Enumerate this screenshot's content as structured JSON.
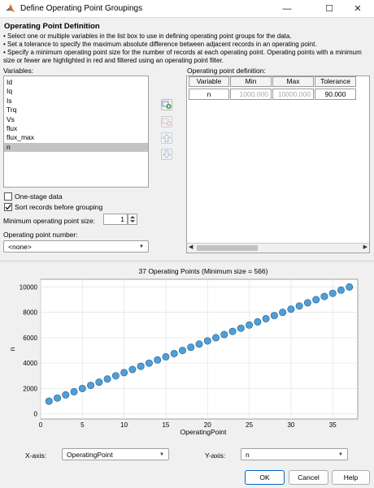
{
  "window": {
    "title": "Define Operating Point Groupings",
    "minimize_glyph": "—",
    "maximize_glyph": "☐",
    "close_glyph": "✕"
  },
  "section": {
    "title": "Operating Point Definition",
    "instructions": [
      "• Select one or multiple variables in the list box to use in defining operating point groups for the data.",
      "• Set a tolerance to specify the maximum absolute difference between adjacent records in an operating point.",
      "• Specify a minimum operating point size for the number of records at each operating point. Operating points with a minimum",
      "size or fewer are highlighted in red and filtered using an operating point filter."
    ]
  },
  "variables": {
    "label": "Variables:",
    "items": [
      "Id",
      "Iq",
      "Is",
      "Trq",
      "Vs",
      "flux",
      "flux_max",
      "n"
    ],
    "selected": "n"
  },
  "side_buttons": [
    "add-icon",
    "remove-icon",
    "arrow-up-icon",
    "arrow-down-icon"
  ],
  "options": {
    "one_stage_label": "One-stage data",
    "one_stage_checked": false,
    "sort_label": "Sort records before grouping",
    "sort_checked": true,
    "min_size_label": "Minimum operating point size:",
    "min_size_value": "1",
    "op_number_label": "Operating point number:",
    "op_number_value": "<none>"
  },
  "op_table": {
    "label": "Operating point definition:",
    "headers": [
      "Variable",
      "Min",
      "Max",
      "Tolerance"
    ],
    "row": {
      "variable": "n",
      "min": "1000.000",
      "max": "10000.000",
      "tolerance": "90.000"
    }
  },
  "chart_data": {
    "type": "scatter",
    "title": "37 Operating Points (Minimum size = 566)",
    "xlabel": "OperatingPoint",
    "ylabel": "n",
    "xlim": [
      0,
      38
    ],
    "ylim": [
      -400,
      10600
    ],
    "xticks": [
      0,
      5,
      10,
      15,
      20,
      25,
      30,
      35
    ],
    "yticks": [
      0,
      2000,
      4000,
      6000,
      8000,
      10000
    ],
    "x": [
      1,
      2,
      3,
      4,
      5,
      6,
      7,
      8,
      9,
      10,
      11,
      12,
      13,
      14,
      15,
      16,
      17,
      18,
      19,
      20,
      21,
      22,
      23,
      24,
      25,
      26,
      27,
      28,
      29,
      30,
      31,
      32,
      33,
      34,
      35,
      36,
      37
    ],
    "y": [
      1000,
      1250,
      1500,
      1750,
      2000,
      2250,
      2500,
      2750,
      3000,
      3250,
      3500,
      3750,
      4000,
      4250,
      4500,
      4750,
      5000,
      5250,
      5500,
      5750,
      6000,
      6250,
      6500,
      6750,
      7000,
      7250,
      7500,
      7750,
      8000,
      8250,
      8500,
      8750,
      9000,
      9250,
      9500,
      9750,
      10000
    ],
    "marker_color": "#4f9fd6",
    "grid": true
  },
  "axes_select": {
    "x_label": "X-axis:",
    "x_value": "OperatingPoint",
    "y_label": "Y-axis:",
    "y_value": "n"
  },
  "buttons": {
    "ok": "OK",
    "cancel": "Cancel",
    "help": "Help"
  }
}
